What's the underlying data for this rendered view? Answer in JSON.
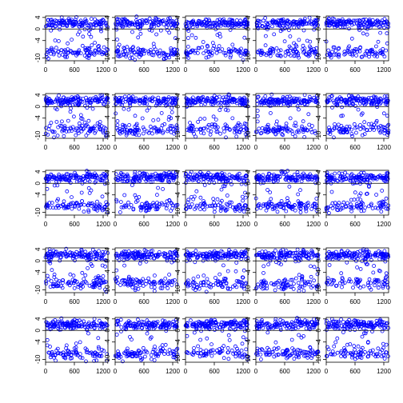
{
  "chart_data": {
    "type": "scatter",
    "layout": {
      "rows": 5,
      "cols": 5
    },
    "title": "",
    "xlabel": "",
    "ylabel": "",
    "xlim": [
      0,
      1300
    ],
    "ylim": [
      -11,
      4.5
    ],
    "x_ticks": [
      0,
      600,
      1200
    ],
    "y_ticks": [
      4,
      0,
      -4,
      -10
    ],
    "x_tick_labels": [
      "0",
      "600",
      "1200"
    ],
    "y_tick_labels": [
      "4",
      "0",
      "-4",
      "-10"
    ],
    "reference_line_y": 0,
    "n_points_per_panel": 1300,
    "clusters": [
      {
        "center": 2,
        "spread": 0.8
      },
      {
        "center": -8,
        "spread": 1.0
      }
    ],
    "point_color": "#0000ff",
    "grid": false,
    "legend": "none",
    "panels_note": "25 panels of the same bimodal scatter pattern"
  }
}
